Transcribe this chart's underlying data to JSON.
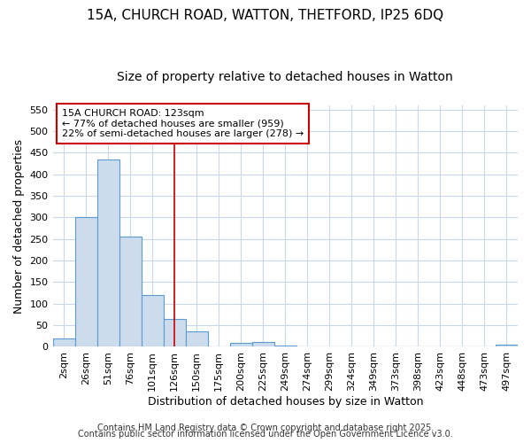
{
  "title1": "15A, CHURCH ROAD, WATTON, THETFORD, IP25 6DQ",
  "title2": "Size of property relative to detached houses in Watton",
  "xlabel": "Distribution of detached houses by size in Watton",
  "ylabel": "Number of detached properties",
  "bar_values": [
    20,
    300,
    435,
    255,
    120,
    65,
    35,
    0,
    10,
    11,
    4,
    0,
    0,
    0,
    0,
    0,
    0,
    0,
    0,
    0,
    5
  ],
  "bar_labels": [
    "2sqm",
    "26sqm",
    "51sqm",
    "76sqm",
    "101sqm",
    "126sqm",
    "150sqm",
    "175sqm",
    "200sqm",
    "225sqm",
    "249sqm",
    "274sqm",
    "299sqm",
    "324sqm",
    "349sqm",
    "373sqm",
    "398sqm",
    "423sqm",
    "448sqm",
    "473sqm",
    "497sqm"
  ],
  "bar_color": "#ccdced",
  "bar_edge_color": "#5b9bd5",
  "ylim": [
    0,
    560
  ],
  "yticks": [
    0,
    50,
    100,
    150,
    200,
    250,
    300,
    350,
    400,
    450,
    500,
    550
  ],
  "vline_x": 5.0,
  "vline_color": "#cc0000",
  "annotation_text": "15A CHURCH ROAD: 123sqm\n← 77% of detached houses are smaller (959)\n22% of semi-detached houses are larger (278) →",
  "annotation_box_color": "#ffffff",
  "annotation_box_edge": "#cc0000",
  "footer1": "Contains HM Land Registry data © Crown copyright and database right 2025.",
  "footer2": "Contains public sector information licensed under the Open Government Licence v3.0.",
  "plot_bg_color": "#ffffff",
  "fig_bg_color": "#ffffff",
  "grid_color": "#c8d8e8",
  "title_fontsize": 11,
  "subtitle_fontsize": 10,
  "axis_label_fontsize": 9,
  "tick_fontsize": 8,
  "annotation_fontsize": 8,
  "footer_fontsize": 7
}
